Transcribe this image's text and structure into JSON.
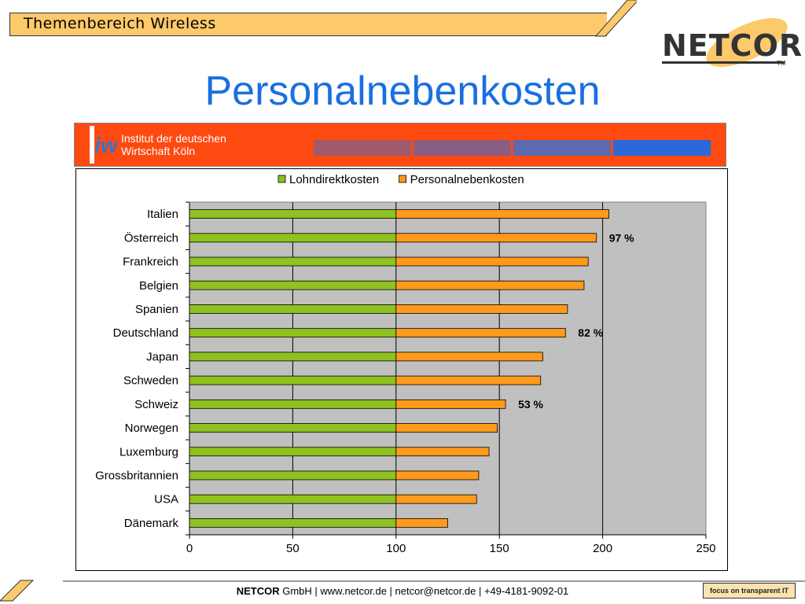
{
  "header": {
    "section_title": "Themenbereich Wireless",
    "logo": "NETCOR",
    "logo_tm": "TM"
  },
  "page": {
    "title": "Personalnebenkosten"
  },
  "banner": {
    "line1": "Institut der deutschen",
    "line2": "Wirtschaft Köln",
    "logo_mark": "iw"
  },
  "footer": {
    "company": "NETCOR",
    "details": " GmbH  | www.netcor.de | netcor@netcor.de | +49-4181-9092-01",
    "badge": "focus on transparent IT"
  },
  "colors": {
    "series1": "#8dc21f",
    "series2": "#ff9a1a",
    "plot_bg": "#c0c0c0",
    "title": "#1a6fe0",
    "banner": "#fd4a10",
    "header": "#fcc96b"
  },
  "chart_data": {
    "type": "bar",
    "orientation": "horizontal",
    "stacked": true,
    "legend_position": "top",
    "grid": true,
    "xlim": [
      0,
      250
    ],
    "xticks": [
      0,
      50,
      100,
      150,
      200,
      250
    ],
    "categories": [
      "Italien",
      "Österreich",
      "Frankreich",
      "Belgien",
      "Spanien",
      "Deutschland",
      "Japan",
      "Schweden",
      "Schweiz",
      "Norwegen",
      "Luxemburg",
      "Grossbritannien",
      "USA",
      "Dänemark"
    ],
    "series": [
      {
        "name": "Lohndirektkosten",
        "values": [
          100,
          100,
          100,
          100,
          100,
          100,
          100,
          100,
          100,
          100,
          100,
          100,
          100,
          100
        ]
      },
      {
        "name": "Personalnebenkosten",
        "values": [
          103,
          97,
          93,
          91,
          83,
          82,
          71,
          70,
          53,
          49,
          45,
          40,
          39,
          25
        ]
      }
    ],
    "annotations": [
      {
        "category": "Österreich",
        "text": "97 %"
      },
      {
        "category": "Deutschland",
        "text": "82 %"
      },
      {
        "category": "Schweiz",
        "text": "53 %"
      }
    ]
  }
}
